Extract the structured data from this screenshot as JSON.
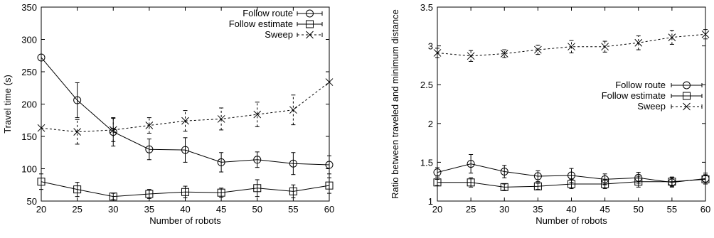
{
  "chart_data": [
    {
      "type": "line",
      "xlabel": "Number of robots",
      "ylabel": "Travel time (s)",
      "xlim": [
        20,
        60
      ],
      "ylim": [
        50,
        350
      ],
      "x": [
        20,
        25,
        30,
        35,
        40,
        45,
        50,
        55,
        60
      ],
      "xticks": [
        "20",
        "25",
        "30",
        "35",
        "40",
        "45",
        "50",
        "55",
        "60"
      ],
      "yticks": [
        50,
        100,
        150,
        200,
        250,
        300,
        350
      ],
      "ytick_labels": [
        "50",
        "100",
        "150",
        "200",
        "250",
        "300",
        "350"
      ],
      "grid": false,
      "legend_position": "top-right",
      "series": [
        {
          "name": "Follow route",
          "marker": "circle",
          "dash": "solid",
          "values": [
            272,
            206,
            157,
            130,
            129,
            110,
            114,
            108,
            106
          ],
          "err": [
            0,
            27,
            22,
            16,
            19,
            15,
            12,
            17,
            14
          ]
        },
        {
          "name": "Follow estimate",
          "marker": "square",
          "dash": "solid",
          "values": [
            80,
            68,
            57,
            61,
            64,
            63,
            70,
            65,
            74
          ],
          "err": [
            12,
            11,
            5,
            7,
            9,
            7,
            13,
            10,
            12
          ]
        },
        {
          "name": "Sweep",
          "marker": "x",
          "dash": "dashed",
          "values": [
            163,
            157,
            160,
            167,
            174,
            177,
            184,
            191,
            234
          ],
          "err": [
            0,
            19,
            18,
            12,
            16,
            17,
            19,
            23,
            0
          ]
        }
      ]
    },
    {
      "type": "line",
      "xlabel": "Number of robots",
      "ylabel": "Ratio between traveled and minimum distance",
      "xlim": [
        20,
        60
      ],
      "ylim": [
        1,
        3.5
      ],
      "x": [
        20,
        25,
        30,
        35,
        40,
        45,
        50,
        55,
        60
      ],
      "xticks": [
        "20",
        "25",
        "30",
        "35",
        "40",
        "45",
        "50",
        "55",
        "60"
      ],
      "yticks": [
        1,
        1.5,
        2,
        2.5,
        3,
        3.5
      ],
      "ytick_labels": [
        "1",
        "1.5",
        "2",
        "2.5",
        "3",
        "3.5"
      ],
      "grid": false,
      "legend_position": "center-right",
      "series": [
        {
          "name": "Follow route",
          "marker": "circle",
          "dash": "solid",
          "values": [
            1.37,
            1.48,
            1.38,
            1.32,
            1.33,
            1.28,
            1.3,
            1.24,
            1.29
          ],
          "err": [
            0.06,
            0.12,
            0.08,
            0.07,
            0.09,
            0.07,
            0.07,
            0.06,
            0.07
          ]
        },
        {
          "name": "Follow estimate",
          "marker": "square",
          "dash": "solid",
          "values": [
            1.24,
            1.24,
            1.18,
            1.19,
            1.22,
            1.22,
            1.25,
            1.25,
            1.28
          ],
          "err": [
            0.04,
            0.06,
            0.04,
            0.04,
            0.06,
            0.06,
            0.07,
            0.06,
            0.06
          ]
        },
        {
          "name": "Sweep",
          "marker": "x",
          "dash": "dashed",
          "values": [
            2.91,
            2.87,
            2.9,
            2.95,
            2.99,
            2.99,
            3.04,
            3.11,
            3.15
          ],
          "err": [
            0.06,
            0.07,
            0.05,
            0.06,
            0.08,
            0.07,
            0.09,
            0.09,
            0.06
          ]
        }
      ]
    }
  ]
}
